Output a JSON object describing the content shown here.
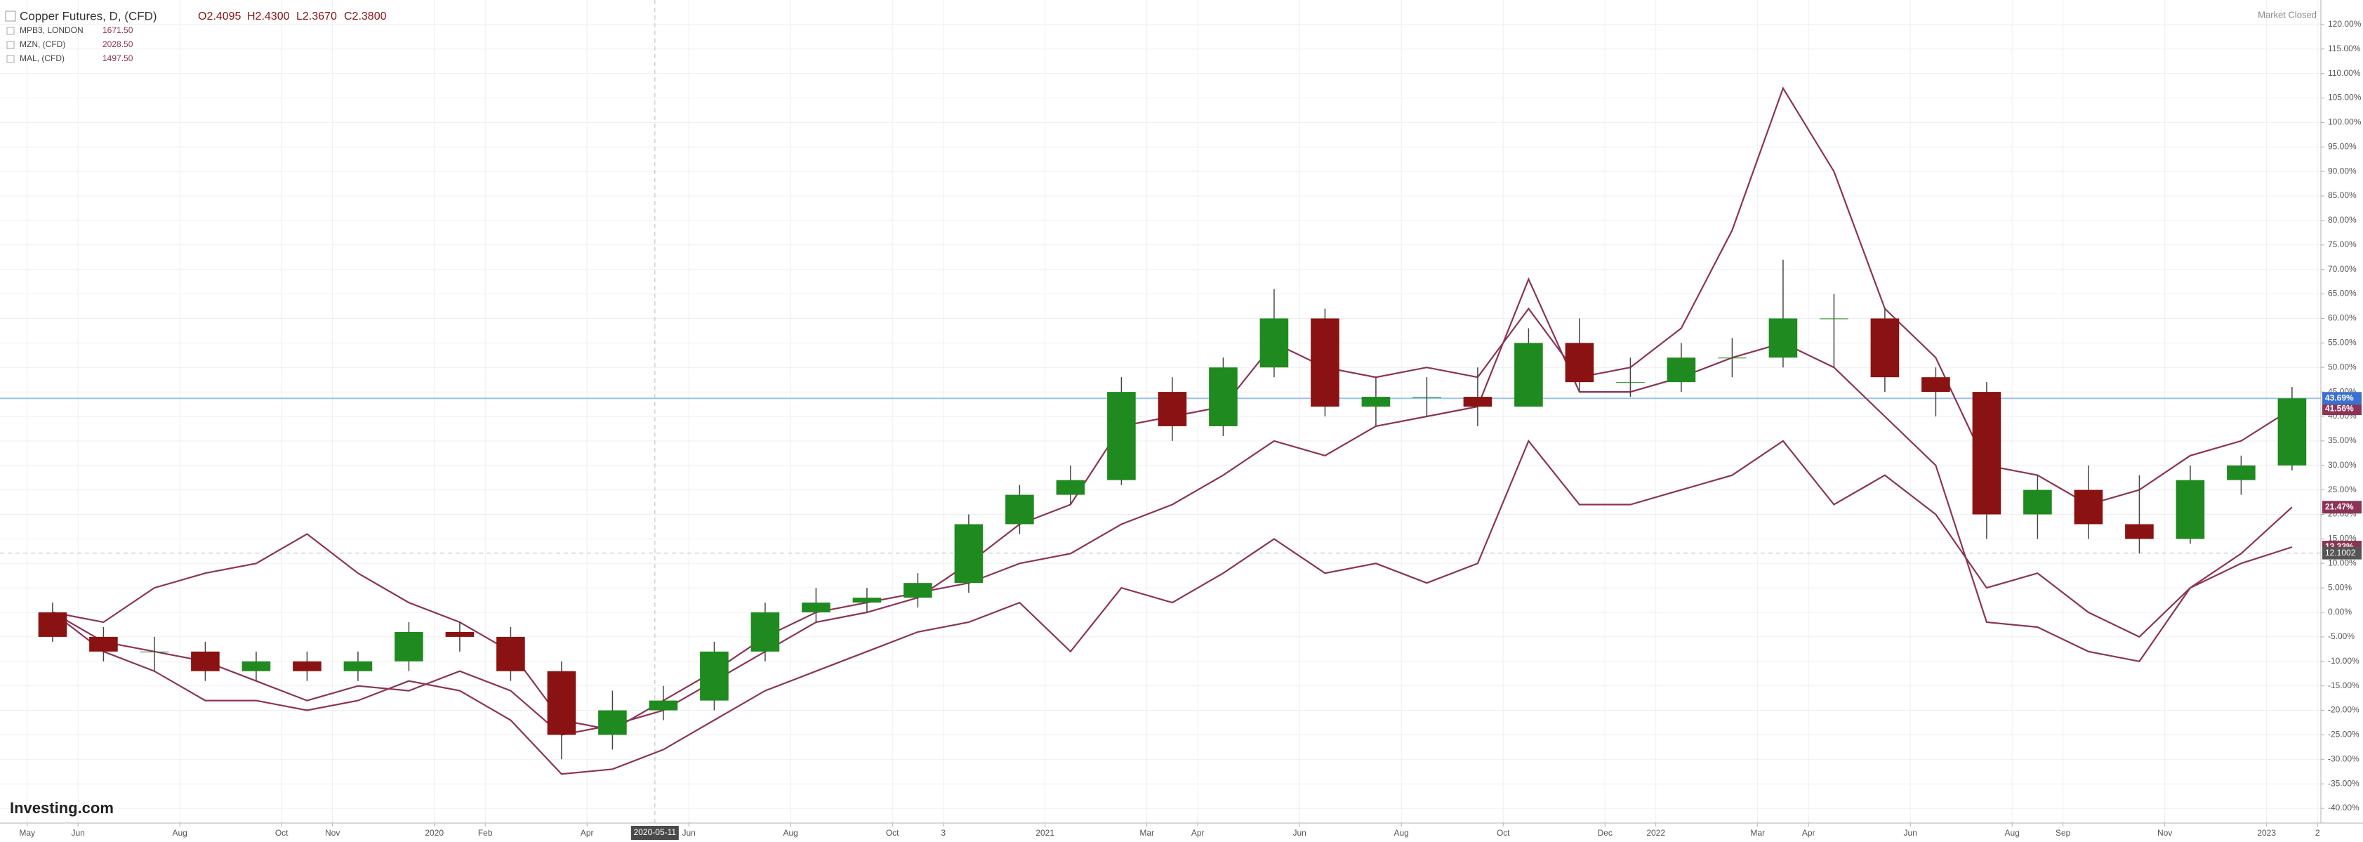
{
  "chart_data": {
    "type": "candlestick",
    "title": "Copper Futures, D, (CFD)",
    "ohlc": [
      "O2.4095",
      "H2.4300",
      "L2.3670",
      "C2.3800"
    ],
    "status": "Market Closed",
    "brand": "Investing.com",
    "x": [
      "2019-05",
      "2019-06",
      "2019-07",
      "2019-08",
      "2019-09",
      "2019-10",
      "2019-11",
      "2019-12",
      "2020-01",
      "2020-02",
      "2020-03",
      "2020-04",
      "2020-05",
      "2020-06",
      "2020-07",
      "2020-08",
      "2020-09",
      "2020-10",
      "2020-11",
      "2020-12",
      "2021-01",
      "2021-02",
      "2021-03",
      "2021-04",
      "2021-05",
      "2021-06",
      "2021-07",
      "2021-08",
      "2021-09",
      "2021-10",
      "2021-11",
      "2021-12",
      "2022-01",
      "2022-02",
      "2022-03",
      "2022-04",
      "2022-05",
      "2022-06",
      "2022-07",
      "2022-08",
      "2022-09",
      "2022-10",
      "2022-11",
      "2022-12",
      "2023-01"
    ],
    "open": [
      0,
      -5,
      -8,
      -8,
      -12,
      -10,
      -12,
      -10,
      -4,
      -5,
      -12,
      -25,
      -20,
      -18,
      -8,
      0,
      2,
      3,
      6,
      18,
      24,
      27,
      45,
      38,
      50,
      60,
      42,
      44,
      44,
      42,
      55,
      47,
      47,
      52,
      52,
      60,
      60,
      48,
      45,
      20,
      25,
      18,
      15,
      27,
      30
    ],
    "high": [
      2,
      -3,
      -5,
      -6,
      -8,
      -8,
      -8,
      -2,
      -2,
      -3,
      -10,
      -16,
      -15,
      -6,
      2,
      5,
      5,
      8,
      20,
      26,
      30,
      48,
      48,
      52,
      66,
      62,
      48,
      48,
      50,
      58,
      60,
      52,
      55,
      56,
      72,
      65,
      62,
      50,
      47,
      28,
      30,
      28,
      30,
      32,
      46
    ],
    "low": [
      -6,
      -10,
      -12,
      -14,
      -14,
      -14,
      -14,
      -12,
      -8,
      -14,
      -30,
      -28,
      -22,
      -20,
      -10,
      -2,
      0,
      1,
      4,
      16,
      22,
      26,
      35,
      36,
      48,
      40,
      38,
      40,
      38,
      42,
      45,
      44,
      45,
      48,
      50,
      50,
      45,
      40,
      15,
      15,
      15,
      12,
      14,
      24,
      29
    ],
    "close": [
      -5,
      -8,
      -8,
      -12,
      -10,
      -12,
      -10,
      -4,
      -5,
      -12,
      -25,
      -20,
      -18,
      -8,
      0,
      2,
      3,
      6,
      18,
      24,
      27,
      45,
      38,
      50,
      60,
      42,
      44,
      44,
      42,
      55,
      47,
      47,
      52,
      52,
      60,
      60,
      48,
      45,
      20,
      25,
      18,
      15,
      27,
      30,
      43.69
    ],
    "color_up": "#1f8a1f",
    "color_down": "#8b1212",
    "last_label": "43.69%",
    "last_color": "#3b6fd0",
    "series": [
      {
        "name": "MPB3, LONDON",
        "price_label": "1671.50",
        "type": "line",
        "color": "#8c3356",
        "last_label": "41.56%",
        "values": [
          0,
          -6,
          -8,
          -10,
          -14,
          -18,
          -15,
          -16,
          -12,
          -16,
          -25,
          -23,
          -20,
          -14,
          -8,
          -2,
          0,
          3,
          10,
          18,
          22,
          38,
          40,
          42,
          55,
          50,
          48,
          50,
          48,
          62,
          48,
          50,
          58,
          78,
          107,
          90,
          62,
          52,
          30,
          28,
          22,
          25,
          32,
          35,
          41.56
        ]
      },
      {
        "name": "MZN, (CFD)",
        "price_label": "2028.50",
        "type": "line",
        "color": "#8c3356",
        "last_label": "21.47%",
        "values": [
          0,
          -2,
          5,
          8,
          10,
          16,
          8,
          2,
          -2,
          -8,
          -22,
          -24,
          -18,
          -12,
          -5,
          0,
          2,
          4,
          6,
          10,
          12,
          18,
          22,
          28,
          35,
          32,
          38,
          40,
          42,
          68,
          45,
          45,
          48,
          52,
          55,
          50,
          40,
          30,
          -2,
          -3,
          -8,
          -10,
          5,
          12,
          21.47
        ]
      },
      {
        "name": "MAL, (CFD)",
        "price_label": "1497.50",
        "type": "line",
        "color": "#8c3356",
        "last_label": "13.33%",
        "values": [
          0,
          -8,
          -12,
          -18,
          -18,
          -20,
          -18,
          -14,
          -16,
          -22,
          -33,
          -32,
          -28,
          -22,
          -16,
          -12,
          -8,
          -4,
          -2,
          2,
          -8,
          5,
          2,
          8,
          15,
          8,
          10,
          6,
          10,
          35,
          22,
          22,
          25,
          28,
          35,
          22,
          28,
          20,
          5,
          8,
          0,
          -5,
          5,
          10,
          13.33
        ]
      }
    ],
    "crosshair": {
      "x": "2020-05-11",
      "y": 12.1002
    },
    "xlim": [
      "2019-04-15",
      "2023-02-03"
    ],
    "ylim": [
      -43,
      125
    ],
    "grid": true,
    "xticks": [
      {
        "value": "2019-05",
        "label": "May"
      },
      {
        "value": "2019-06",
        "label": "Jun"
      },
      {
        "value": "2019-08",
        "label": "Aug"
      },
      {
        "value": "2019-10",
        "label": "Oct"
      },
      {
        "value": "2019-11",
        "label": "Nov"
      },
      {
        "value": "2020-01",
        "label": "2020"
      },
      {
        "value": "2020-02",
        "label": "Feb"
      },
      {
        "value": "2020-04",
        "label": "Apr"
      },
      {
        "value": "2020-06",
        "label": "Jun"
      },
      {
        "value": "2020-08",
        "label": "Aug"
      },
      {
        "value": "2020-10",
        "label": "Oct"
      },
      {
        "value": "2020-11",
        "label": "3"
      },
      {
        "value": "2021-01",
        "label": "2021"
      },
      {
        "value": "2021-03",
        "label": "Mar"
      },
      {
        "value": "2021-04",
        "label": "Apr"
      },
      {
        "value": "2021-06",
        "label": "Jun"
      },
      {
        "value": "2021-08",
        "label": "Aug"
      },
      {
        "value": "2021-10",
        "label": "Oct"
      },
      {
        "value": "2021-12",
        "label": "Dec"
      },
      {
        "value": "2022-01",
        "label": "2022"
      },
      {
        "value": "2022-03",
        "label": "Mar"
      },
      {
        "value": "2022-04",
        "label": "Apr"
      },
      {
        "value": "2022-06",
        "label": "Jun"
      },
      {
        "value": "2022-08",
        "label": "Aug"
      },
      {
        "value": "2022-09",
        "label": "Sep"
      },
      {
        "value": "2022-11",
        "label": "Nov"
      },
      {
        "value": "2023-01",
        "label": "2023"
      },
      {
        "value": "2023-02",
        "label": "2"
      }
    ],
    "yticks": [
      {
        "value": -40,
        "label": "-40.00%"
      },
      {
        "value": -35,
        "label": "-35.00%"
      },
      {
        "value": -30,
        "label": "-30.00%"
      },
      {
        "value": -25,
        "label": "-25.00%"
      },
      {
        "value": -20,
        "label": "-20.00%"
      },
      {
        "value": -15,
        "label": "-15.00%"
      },
      {
        "value": -10,
        "label": "-10.00%"
      },
      {
        "value": -5,
        "label": "-5.00%"
      },
      {
        "value": 0,
        "label": "0.00%"
      },
      {
        "value": 5,
        "label": "5.00%"
      },
      {
        "value": 10,
        "label": "10.00%"
      },
      {
        "value": 15,
        "label": "15.00%"
      },
      {
        "value": 20,
        "label": "20.00%"
      },
      {
        "value": 25,
        "label": "25.00%"
      },
      {
        "value": 30,
        "label": "30.00%"
      },
      {
        "value": 35,
        "label": "35.00%"
      },
      {
        "value": 40,
        "label": "40.00%"
      },
      {
        "value": 45,
        "label": "45.00%"
      },
      {
        "value": 50,
        "label": "50.00%"
      },
      {
        "value": 55,
        "label": "55.00%"
      },
      {
        "value": 60,
        "label": "60.00%"
      },
      {
        "value": 65,
        "label": "65.00%"
      },
      {
        "value": 70,
        "label": "70.00%"
      },
      {
        "value": 75,
        "label": "75.00%"
      },
      {
        "value": 80,
        "label": "80.00%"
      },
      {
        "value": 85,
        "label": "85.00%"
      },
      {
        "value": 90,
        "label": "90.00%"
      },
      {
        "value": 95,
        "label": "95.00%"
      },
      {
        "value": 100,
        "label": "100.00%"
      },
      {
        "value": 105,
        "label": "105.00%"
      },
      {
        "value": 110,
        "label": "110.00%"
      },
      {
        "value": 115,
        "label": "115.00%"
      },
      {
        "value": 120,
        "label": "120.00%"
      }
    ]
  }
}
